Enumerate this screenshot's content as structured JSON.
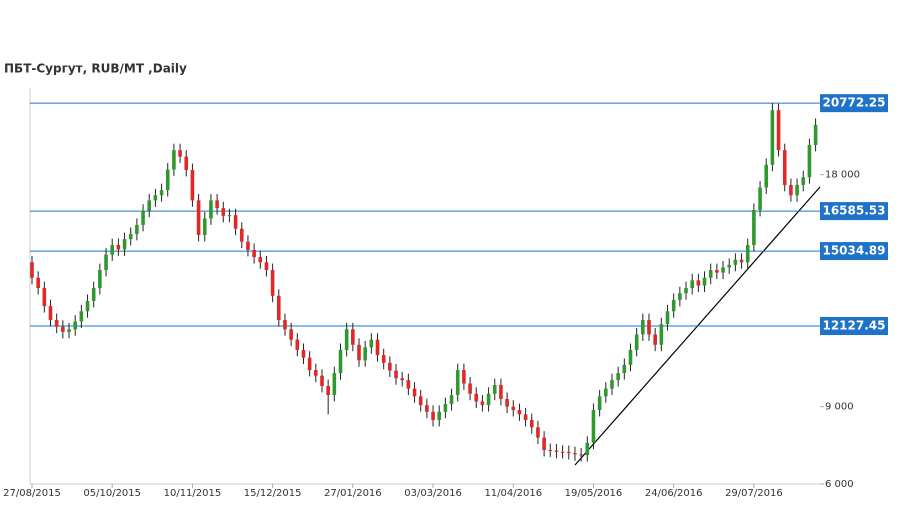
{
  "chart_data": {
    "type": "candlestick",
    "title": "ПБТ-Сургут,  RUB/MT ,Daily",
    "ylim": [
      6000,
      21360
    ],
    "yticks": [
      {
        "value": 6000,
        "label": "6 000"
      },
      {
        "value": 9000,
        "label": "9 000"
      },
      {
        "value": 18000,
        "label": "18 000"
      }
    ],
    "levels": [
      20772.25,
      16585.53,
      15034.89,
      12127.45
    ],
    "up_color": "#2e9a2e",
    "down_color": "#e02828",
    "categories": [
      "27/08/2015",
      null,
      null,
      null,
      null,
      null,
      null,
      null,
      null,
      null,
      null,
      null,
      null,
      "05/10/2015",
      null,
      null,
      null,
      null,
      null,
      null,
      null,
      null,
      null,
      null,
      null,
      null,
      "10/11/2015",
      null,
      null,
      null,
      null,
      null,
      null,
      null,
      null,
      null,
      null,
      null,
      null,
      "15/12/2015",
      null,
      null,
      null,
      null,
      null,
      null,
      null,
      null,
      null,
      null,
      null,
      null,
      "27/01/2016",
      null,
      null,
      null,
      null,
      null,
      null,
      null,
      null,
      null,
      null,
      null,
      null,
      "03/03/2016",
      null,
      null,
      null,
      null,
      null,
      null,
      null,
      null,
      null,
      null,
      null,
      null,
      "11/04/2016",
      null,
      null,
      null,
      null,
      null,
      null,
      null,
      null,
      null,
      null,
      null,
      null,
      "19/05/2016",
      null,
      null,
      null,
      null,
      null,
      null,
      null,
      null,
      null,
      null,
      null,
      null,
      "24/06/2016",
      null,
      null,
      null,
      null,
      null,
      null,
      null,
      null,
      null,
      null,
      null,
      null,
      "29/07/2016",
      null,
      null,
      null,
      null,
      null,
      null,
      null,
      null,
      null,
      null
    ],
    "open": [
      14600,
      14000,
      13600,
      12900,
      12360,
      12100,
      11900,
      12000,
      12300,
      12700,
      13100,
      13600,
      14300,
      14900,
      15270,
      15100,
      15500,
      15700,
      16050,
      16600,
      17000,
      17200,
      17400,
      18200,
      18950,
      18700,
      18180,
      17000,
      15660,
      16300,
      17000,
      16700,
      16400,
      16430,
      15900,
      15400,
      15080,
      14800,
      14600,
      14300,
      13300,
      12360,
      12000,
      11600,
      11200,
      10900,
      10420,
      10200,
      9800,
      9450,
      10300,
      11200,
      12000,
      11400,
      10800,
      11300,
      11600,
      11000,
      10700,
      10400,
      10100,
      10030,
      9700,
      9400,
      9060,
      8800,
      8480,
      8800,
      9100,
      9450,
      10420,
      9900,
      9500,
      9200,
      9060,
      9500,
      9840,
      9300,
      9000,
      8870,
      8700,
      8480,
      8200,
      7800,
      7320,
      7300,
      7250,
      7240,
      7200,
      7150,
      7120,
      7600,
      8870,
      9400,
      9700,
      10030,
      10300,
      10620,
      11200,
      11800,
      12360,
      11800,
      11400,
      12200,
      12700,
      13140,
      13400,
      13600,
      13900,
      13700,
      14000,
      14300,
      14200,
      14400,
      14500,
      14700,
      14600,
      15270,
      16630,
      17500,
      18380,
      20500,
      18950,
      17600,
      17200,
      17600,
      17900,
      19150
    ],
    "high": [
      14850,
      14250,
      13850,
      13150,
      12610,
      12350,
      12250,
      12550,
      12950,
      13350,
      13850,
      14550,
      15150,
      15520,
      15520,
      15750,
      15950,
      16300,
      16850,
      17250,
      17450,
      17650,
      18450,
      19200,
      19200,
      18950,
      18430,
      17250,
      16550,
      17250,
      17250,
      16950,
      16680,
      16680,
      16150,
      15650,
      15330,
      15050,
      14850,
      14550,
      13550,
      12610,
      12250,
      11850,
      11450,
      11150,
      10670,
      10450,
      10050,
      10550,
      11450,
      12250,
      12250,
      11650,
      11550,
      11850,
      11850,
      11250,
      10950,
      10650,
      10350,
      10280,
      9950,
      9650,
      9310,
      9050,
      9050,
      9350,
      9700,
      10670,
      10670,
      10150,
      9750,
      9450,
      9750,
      10090,
      10090,
      9550,
      9250,
      9120,
      8950,
      8730,
      8450,
      8050,
      7570,
      7550,
      7500,
      7490,
      7450,
      7400,
      7850,
      9120,
      9650,
      9950,
      10280,
      10550,
      10870,
      11450,
      12050,
      12610,
      12610,
      12050,
      12450,
      12950,
      13390,
      13650,
      13850,
      14150,
      14150,
      14250,
      14550,
      14550,
      14650,
      14750,
      14950,
      14950,
      15520,
      16880,
      17750,
      18630,
      20772,
      20750,
      19200,
      17850,
      17850,
      18150,
      19400,
      20180
    ],
    "low": [
      13750,
      13350,
      12650,
      12110,
      11850,
      11650,
      11650,
      11750,
      12050,
      12450,
      12850,
      13350,
      14050,
      14650,
      14850,
      14850,
      15250,
      15450,
      15800,
      16350,
      16750,
      16950,
      17150,
      17950,
      18450,
      17930,
      16750,
      15410,
      15410,
      16050,
      16450,
      16150,
      16150,
      15650,
      15150,
      14830,
      14550,
      14350,
      14050,
      13050,
      12110,
      11750,
      11350,
      10950,
      10650,
      10170,
      9950,
      9550,
      8700,
      9200,
      10050,
      10950,
      11150,
      10550,
      10550,
      11050,
      10750,
      10450,
      10150,
      9850,
      9780,
      9450,
      9150,
      8810,
      8550,
      8230,
      8230,
      8550,
      8850,
      9200,
      9650,
      9250,
      8950,
      8810,
      8810,
      9250,
      9050,
      8750,
      8620,
      8450,
      8230,
      7950,
      7550,
      7070,
      7050,
      7000,
      6990,
      6950,
      6900,
      6870,
      6870,
      7350,
      8620,
      9150,
      9450,
      9780,
      10050,
      10370,
      10950,
      11550,
      11550,
      11150,
      11150,
      11950,
      12450,
      12890,
      13150,
      13350,
      13450,
      13450,
      13750,
      13950,
      13950,
      14150,
      14250,
      14350,
      14350,
      15020,
      16380,
      17250,
      18130,
      18700,
      17350,
      16950,
      16950,
      17350,
      17650,
      18900
    ],
    "close": [
      14000,
      13600,
      12900,
      12360,
      12100,
      11900,
      12000,
      12300,
      12700,
      13100,
      13600,
      14300,
      14900,
      15270,
      15100,
      15500,
      15700,
      16050,
      16600,
      17000,
      17200,
      17400,
      18200,
      18950,
      18700,
      18180,
      17000,
      15660,
      16300,
      17000,
      16700,
      16400,
      16430,
      15900,
      15400,
      15080,
      14800,
      14600,
      14300,
      13300,
      12360,
      12000,
      11600,
      11200,
      10900,
      10420,
      10200,
      9800,
      9450,
      10300,
      11200,
      12000,
      11400,
      10800,
      11300,
      11600,
      11000,
      10700,
      10400,
      10100,
      10030,
      9700,
      9400,
      9060,
      8800,
      8480,
      8800,
      9100,
      9450,
      10420,
      9900,
      9500,
      9200,
      9060,
      9500,
      9840,
      9300,
      9000,
      8870,
      8700,
      8480,
      8200,
      7800,
      7320,
      7300,
      7250,
      7240,
      7200,
      7150,
      7120,
      7600,
      8870,
      9400,
      9700,
      10030,
      10300,
      10620,
      11200,
      11800,
      12360,
      11800,
      11400,
      12200,
      12700,
      13140,
      13400,
      13600,
      13900,
      13700,
      14000,
      14300,
      14200,
      14400,
      14500,
      14700,
      14600,
      15270,
      16630,
      17500,
      18380,
      20500,
      18950,
      17600,
      17200,
      17600,
      17900,
      19150,
      19930
    ]
  }
}
